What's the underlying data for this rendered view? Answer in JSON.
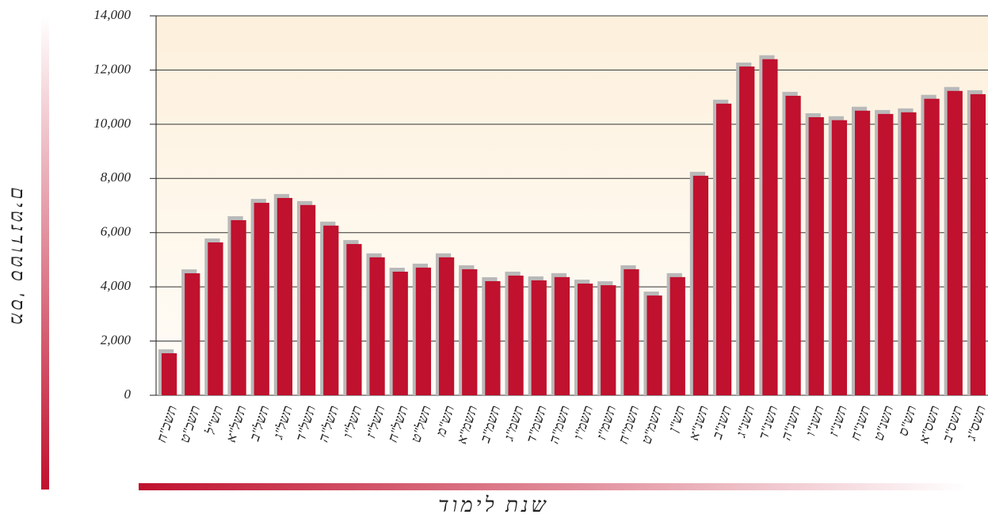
{
  "chart_data": {
    "type": "bar",
    "x_label": "שנת לימוד",
    "y_label": "מס' סטודנטים",
    "categories": [
      "תשכ\"ח",
      "תשכ\"ט",
      "תש\"ל",
      "תשל\"א",
      "תשל\"ב",
      "תשל\"ג",
      "תשל\"ד",
      "תשל\"ה",
      "תשל\"ו",
      "תשל\"ז",
      "תשל\"ח",
      "תשל\"ט",
      "תש\"מ",
      "תשמ\"א",
      "תשמ\"ב",
      "תשמ\"ג",
      "תשמ\"ד",
      "תשמ\"ה",
      "תשמ\"ו",
      "תשמ\"ז",
      "תשמ\"ח",
      "תשמ\"ט",
      "תש\"ן",
      "תשנ\"א",
      "תשנ\"ב",
      "תשנ\"ג",
      "תשנ\"ד",
      "תשנ\"ה",
      "תשנ\"ו",
      "תשנ\"ז",
      "תשנ\"ח",
      "תשנ\"ט",
      "תש\"ס",
      "תשס\"א",
      "תשס\"ב",
      "תשס\"ג"
    ],
    "values": [
      1550,
      4500,
      5640,
      6460,
      7100,
      7280,
      7020,
      6260,
      5580,
      5090,
      4560,
      4710,
      5090,
      4650,
      4210,
      4415,
      4240,
      4360,
      4120,
      4060,
      4650,
      3680,
      4360,
      8100,
      10760,
      12130,
      12400,
      11050,
      10260,
      10150,
      10500,
      10380,
      10440,
      10940,
      11230,
      11110
    ],
    "color": "#c0112e",
    "ylim": [
      0,
      14000
    ],
    "yticks": [
      0,
      {
        "value": 2000,
        "label": "2,000"
      },
      {
        "value": 4000,
        "label": "4,000"
      },
      {
        "value": 6000,
        "label": "6,000"
      },
      {
        "value": 8000,
        "label": "8,000"
      },
      {
        "value": 10000,
        "label": "10,000"
      },
      {
        "value": 12000,
        "label": "12,000"
      },
      {
        "value": 14000,
        "label": "14,000"
      }
    ],
    "grid": true
  }
}
